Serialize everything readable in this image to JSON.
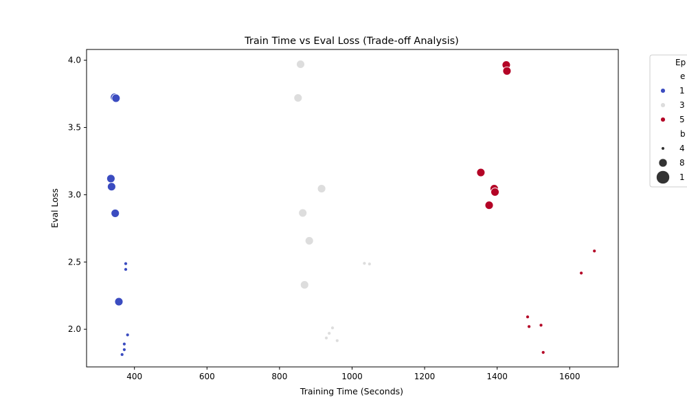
{
  "chart_data": {
    "type": "scatter",
    "title": "Train Time vs Eval Loss (Trade-off Analysis)",
    "xlabel": "Training Time (Seconds)",
    "ylabel": "Eval Loss",
    "xlim": [
      268,
      1734
    ],
    "ylim": [
      1.72,
      4.08
    ],
    "xticks": [
      400,
      600,
      800,
      1000,
      1200,
      1400,
      1600
    ],
    "yticks": [
      2.0,
      2.5,
      3.0,
      3.5,
      4.0
    ],
    "grid": false,
    "legend": {
      "placement": "outside-right",
      "title": "Ep",
      "hue_title": "e",
      "hue_entries": [
        {
          "label": "1",
          "color": "#3b4cc0"
        },
        {
          "label": "3",
          "color": "#dddddd"
        },
        {
          "label": "5",
          "color": "#b40426"
        }
      ],
      "size_title": "b",
      "size_entries": [
        {
          "label": "4",
          "radius": 2.3
        },
        {
          "label": "8",
          "radius": 6
        },
        {
          "label": "1",
          "radius": 9.5
        }
      ]
    },
    "series": [
      {
        "name": "1",
        "color": "#3b4cc0",
        "points": [
          {
            "x": 345,
            "y": 3.725,
            "r": 6
          },
          {
            "x": 349,
            "y": 3.718,
            "r": 6
          },
          {
            "x": 335,
            "y": 3.12,
            "r": 6
          },
          {
            "x": 337,
            "y": 3.06,
            "r": 6
          },
          {
            "x": 347,
            "y": 2.862,
            "r": 6
          },
          {
            "x": 357,
            "y": 2.205,
            "r": 6
          },
          {
            "x": 376,
            "y": 2.488,
            "r": 2.3
          },
          {
            "x": 376,
            "y": 2.445,
            "r": 2.3
          },
          {
            "x": 381,
            "y": 1.958,
            "r": 2.3
          },
          {
            "x": 372,
            "y": 1.89,
            "r": 2.3
          },
          {
            "x": 372,
            "y": 1.848,
            "r": 2.3
          },
          {
            "x": 366,
            "y": 1.812,
            "r": 2.3
          }
        ]
      },
      {
        "name": "3",
        "color": "#dddddd",
        "points": [
          {
            "x": 858,
            "y": 3.97,
            "r": 6
          },
          {
            "x": 851,
            "y": 3.72,
            "r": 6
          },
          {
            "x": 916,
            "y": 3.045,
            "r": 6
          },
          {
            "x": 864,
            "y": 2.865,
            "r": 6
          },
          {
            "x": 882,
            "y": 2.658,
            "r": 6
          },
          {
            "x": 869,
            "y": 2.33,
            "r": 6
          },
          {
            "x": 1034,
            "y": 2.49,
            "r": 2.3
          },
          {
            "x": 1048,
            "y": 2.485,
            "r": 2.3
          },
          {
            "x": 946,
            "y": 2.01,
            "r": 2.3
          },
          {
            "x": 937,
            "y": 1.97,
            "r": 2.3
          },
          {
            "x": 929,
            "y": 1.935,
            "r": 2.3
          },
          {
            "x": 959,
            "y": 1.915,
            "r": 2.3
          }
        ]
      },
      {
        "name": "5",
        "color": "#b40426",
        "points": [
          {
            "x": 1425,
            "y": 3.965,
            "r": 6
          },
          {
            "x": 1427,
            "y": 3.92,
            "r": 6
          },
          {
            "x": 1355,
            "y": 3.165,
            "r": 6
          },
          {
            "x": 1392,
            "y": 3.045,
            "r": 6
          },
          {
            "x": 1394,
            "y": 3.02,
            "r": 6
          },
          {
            "x": 1378,
            "y": 2.922,
            "r": 6
          },
          {
            "x": 1668,
            "y": 2.582,
            "r": 2.3
          },
          {
            "x": 1632,
            "y": 2.418,
            "r": 2.3
          },
          {
            "x": 1484,
            "y": 2.092,
            "r": 2.3
          },
          {
            "x": 1521,
            "y": 2.03,
            "r": 2.3
          },
          {
            "x": 1488,
            "y": 2.02,
            "r": 2.3
          },
          {
            "x": 1527,
            "y": 1.828,
            "r": 2.3
          }
        ]
      }
    ]
  }
}
